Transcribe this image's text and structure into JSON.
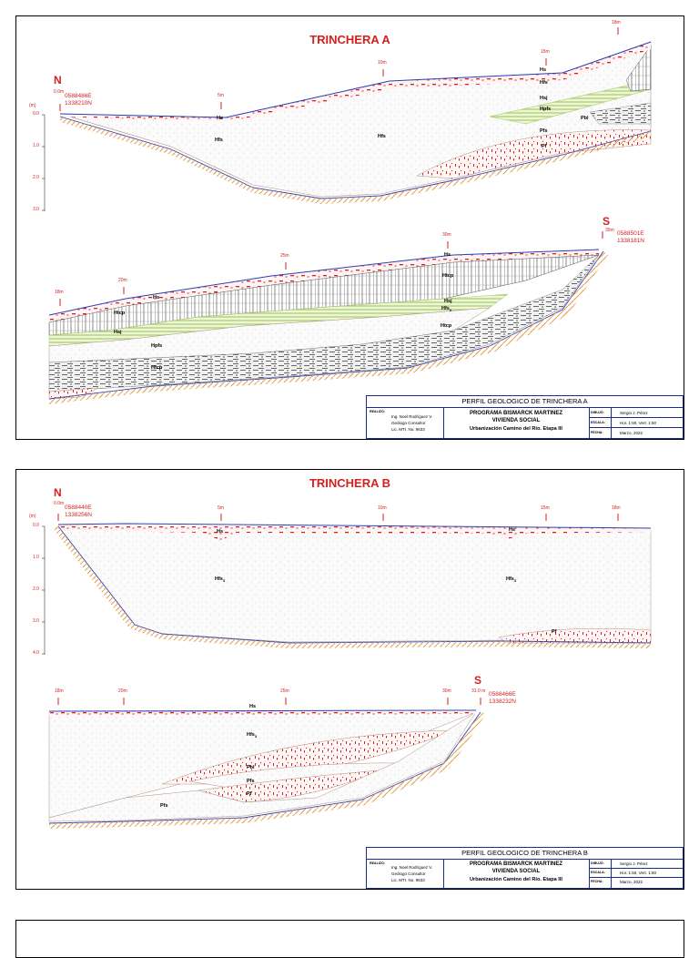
{
  "trinchera_a": {
    "title": "TRINCHERA A",
    "north": "N",
    "south": "S",
    "start_chain": "0.0m",
    "start_coord_e": "0588486E",
    "start_coord_n": "1338210N",
    "end_chain": "35m",
    "end_coord_e": "0588501E",
    "end_coord_n": "1338181N",
    "depth_unit": "(m)",
    "depth_ticks": [
      "0.0",
      "1.0",
      "2.0",
      "3.0"
    ],
    "top_chain_labels": [
      "5m",
      "10m",
      "15m",
      "18m"
    ],
    "bottom_chain_labels": [
      "18m",
      "20m",
      "25m",
      "30m"
    ],
    "top_units": [
      "Hs",
      "Hfs",
      "Hfs",
      "Hs",
      "Hfs",
      "Hsj",
      "Hpfs",
      "Pbl",
      "Pfs",
      "Pf"
    ],
    "bottom_units": [
      "Hs",
      "Htcp",
      "Hsj",
      "Hpfs",
      "Htcp",
      "Hs",
      "Htcp",
      "Hsj",
      "Hfs",
      "Htcp"
    ],
    "hfs2_main": "Hfs",
    "hfs2_sub": "2",
    "title_block": {
      "heading": "PERFIL GEOLOGICO DE TRINCHERA A",
      "label_realizo": "REALIZÓ:",
      "realizo": [
        "Ing. Noel Rodríguez V.",
        "Geólogo Consultor",
        "Lic. MTI. No. 9633"
      ],
      "project": [
        "PROGRAMA BISMARCK MARTINEZ",
        "VIVIENDA SOCIAL",
        "Urbanización Camino del Río. Etapa III"
      ],
      "label_dibujo": "DIBUJÓ:",
      "dibujo": "Sergio J. Pérez",
      "label_escala": "ESCALA:",
      "escala": "Hor. 1:50, Vert. 1:50",
      "label_fecha": "FECHA:",
      "fecha": "Marzo, 2022"
    }
  },
  "trinchera_b": {
    "title": "TRINCHERA B",
    "north": "N",
    "south": "S",
    "start_chain": "0.0m",
    "start_coord_e": "0588440E",
    "start_coord_n": "1338256N",
    "end_chain": "31.0 m",
    "end_coord_e": "0588466E",
    "end_coord_n": "1338232N",
    "depth_unit": "(m)",
    "depth_ticks": [
      "0.0",
      "1.0",
      "2.0",
      "3.0",
      "4.0"
    ],
    "top_chain_labels": [
      "5m",
      "10m",
      "15m",
      "18m"
    ],
    "bottom_chain_labels": [
      "18m",
      "20m",
      "25m",
      "30m"
    ],
    "top_units": [
      "Hs",
      "Hs",
      "Pf"
    ],
    "hfs3_main": "Hfs",
    "hfs3_sub": "3",
    "bottom_units": [
      "Hs",
      "Pbl",
      "Pfs",
      "Pf",
      "Pfs"
    ],
    "title_block": {
      "heading": "PERFIL GEOLOGICO DE TRINCHERA B",
      "label_realizo": "REALIZÓ:",
      "realizo": [
        "Ing. Noel Rodríguez V.",
        "Geólogo Consultor",
        "Lic. MTI. No. 9633"
      ],
      "project": [
        "PROGRAMA BISMARCK MARTINEZ",
        "VIVIENDA SOCIAL",
        "Urbanización Camino del Río. Etapa III"
      ],
      "label_dibujo": "DIBUJÓ:",
      "dibujo": "Sergio J. Pérez",
      "label_escala": "ESCALA:",
      "escala": "Hor. 1:50, Vert. 1:50",
      "label_fecha": "FECHA:",
      "fecha": "Marzo, 2022"
    }
  },
  "colors": {
    "red": "#d62020",
    "blue": "#2a3fb8",
    "orange": "#e0a050",
    "green": "#a8cc68",
    "gray": "#888888"
  }
}
